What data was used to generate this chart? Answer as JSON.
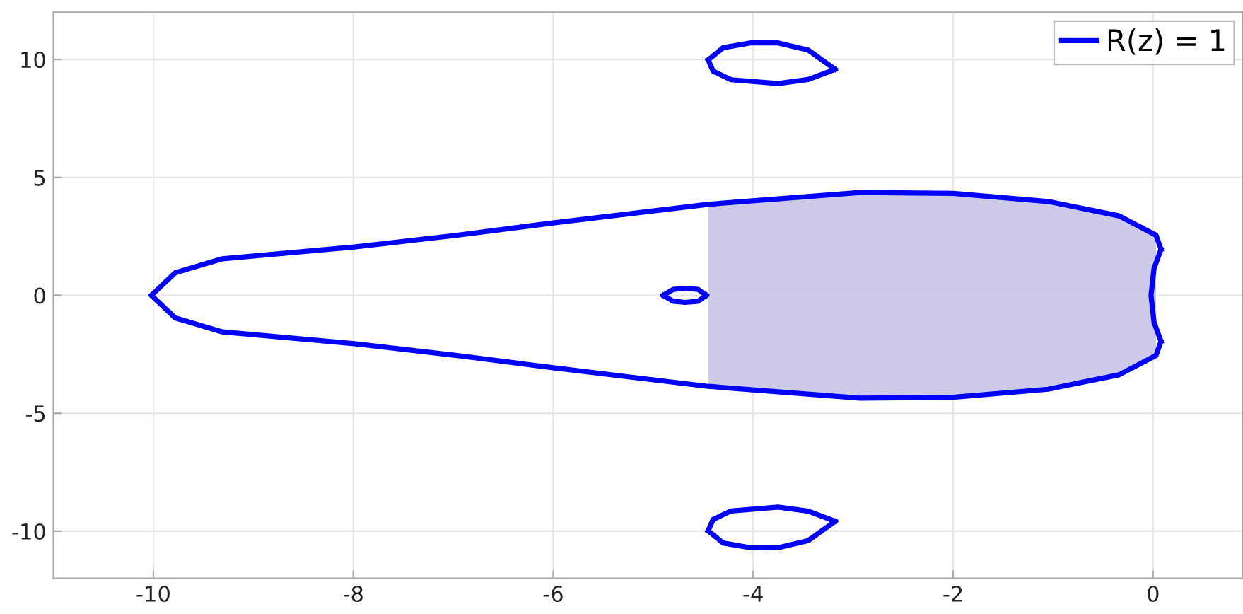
{
  "chart_data": {
    "type": "line",
    "xlim": [
      -11,
      0.9
    ],
    "ylim": [
      -12,
      12
    ],
    "xticks": [
      -10,
      -8,
      -6,
      -4,
      -2,
      0
    ],
    "yticks": [
      -10,
      -5,
      0,
      5,
      10
    ],
    "grid": true,
    "legend": "top right",
    "series": [
      {
        "type": "area",
        "color": "#cdc9e8",
        "x": [
          -4.45,
          -4,
          -2.93,
          -2,
          -1.05,
          -0.34,
          0.03
        ],
        "values": [
          3.86,
          4.1,
          4.36,
          4.32,
          3.98,
          3.37,
          2.55
        ]
      },
      {
        "type": "area",
        "color": "#cdc9e8",
        "x": [
          -4.45,
          -4,
          -2.93,
          -2,
          -1.05,
          -0.34,
          0.03
        ],
        "values": [
          -3.86,
          -4.1,
          -4.36,
          -4.32,
          -3.98,
          -3.37,
          -2.55
        ]
      },
      {
        "name": "R(z) = 1",
        "color": "#0000ff",
        "x": [
          -10.02,
          -9.78,
          -9.31,
          -7.99,
          -6.96,
          -6.0,
          -5.16,
          -4.45,
          -2.93,
          -2.0,
          -1.05,
          -0.34,
          0.03,
          0.08
        ],
        "values": [
          0,
          0.96,
          1.55,
          2.05,
          2.55,
          3.07,
          3.5,
          3.86,
          4.36,
          4.32,
          3.98,
          3.37,
          2.55,
          1.95
        ]
      },
      {
        "color": "#0000ff",
        "x": [
          0.08,
          0.01,
          -0.02,
          0.01,
          0.08
        ],
        "values": [
          1.95,
          1.14,
          0,
          -1.14,
          -1.95
        ]
      },
      {
        "color": "#0000ff",
        "x": [
          -10.02,
          -9.78,
          -9.31,
          -7.99,
          -6.96,
          -6.0,
          -5.16,
          -4.45,
          -2.93,
          -2.0,
          -1.05,
          -0.34,
          0.03,
          0.08
        ],
        "values": [
          0,
          -0.96,
          -1.55,
          -2.05,
          -2.55,
          -3.07,
          -3.5,
          -3.86,
          -4.36,
          -4.32,
          -3.98,
          -3.37,
          -2.55,
          -1.95
        ]
      },
      {
        "color": "#0000ff",
        "x": [
          -4.9,
          -4.8,
          -4.68,
          -4.55,
          -4.47
        ],
        "values": [
          0,
          0.25,
          0.3,
          0.25,
          0
        ]
      },
      {
        "color": "#0000ff",
        "x": [
          -4.9,
          -4.8,
          -4.68,
          -4.55,
          -4.47
        ],
        "values": [
          0,
          -0.25,
          -0.3,
          -0.25,
          0
        ]
      },
      {
        "color": "#0000ff",
        "x": [
          -4.45,
          -4.3,
          -4.03,
          -3.75,
          -3.45,
          -3.18
        ],
        "values": [
          9.98,
          10.5,
          10.7,
          10.7,
          10.4,
          9.58
        ]
      },
      {
        "color": "#0000ff",
        "x": [
          -4.45,
          -4.4,
          -4.22,
          -3.75,
          -3.45,
          -3.18
        ],
        "values": [
          9.98,
          9.5,
          9.14,
          8.98,
          9.15,
          9.58
        ]
      },
      {
        "color": "#0000ff",
        "x": [
          -4.45,
          -4.4,
          -4.22,
          -3.75,
          -3.45,
          -3.18
        ],
        "values": [
          -9.98,
          -9.5,
          -9.14,
          -8.98,
          -9.15,
          -9.58
        ]
      },
      {
        "color": "#0000ff",
        "x": [
          -4.45,
          -4.3,
          -4.03,
          -3.75,
          -3.45,
          -3.18
        ],
        "values": [
          -9.98,
          -10.5,
          -10.7,
          -10.7,
          -10.4,
          -9.58
        ]
      }
    ]
  }
}
